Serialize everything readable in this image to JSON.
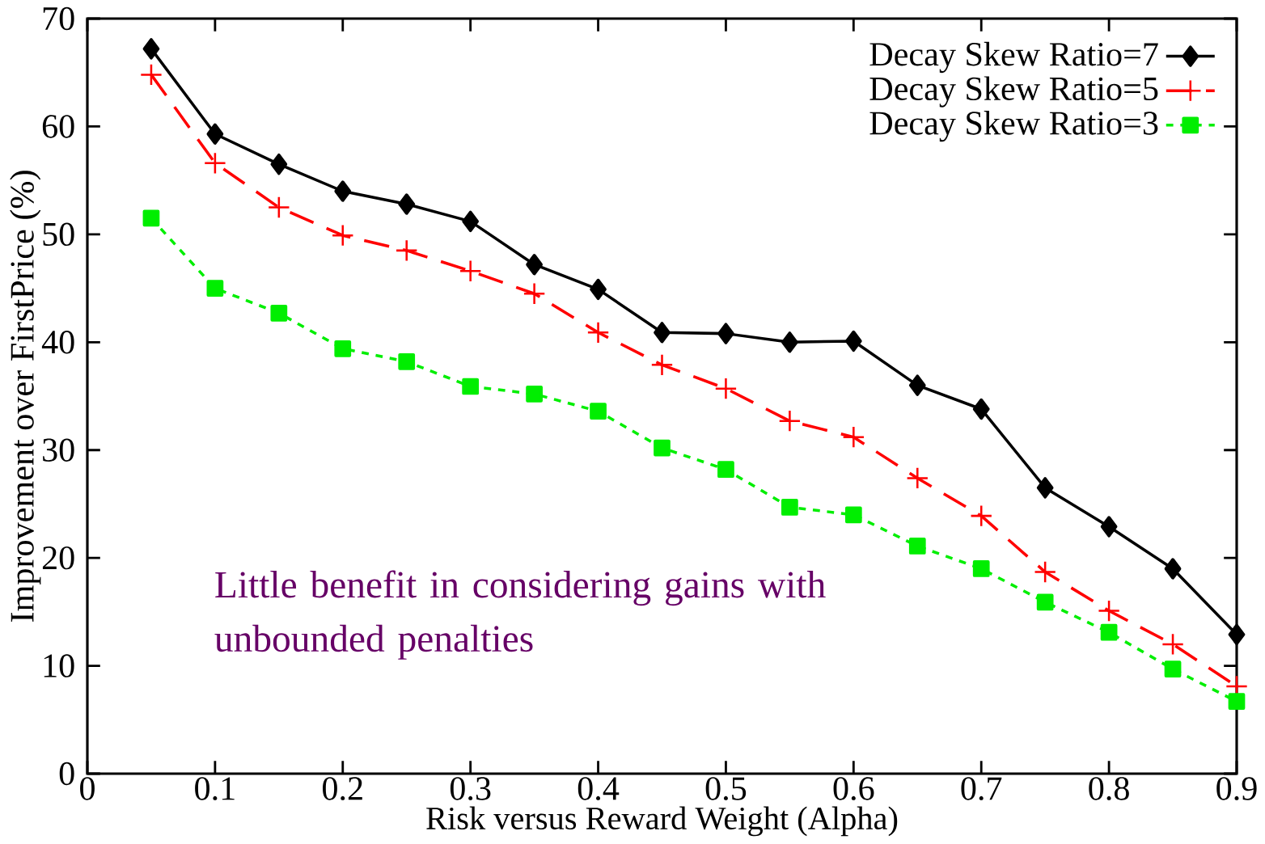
{
  "chart_data": {
    "type": "line",
    "xlabel": "Risk versus Reward Weight (Alpha)",
    "ylabel": "Improvement over FirstPrice (%)",
    "x": [
      0.05,
      0.1,
      0.15,
      0.2,
      0.25,
      0.3,
      0.35,
      0.4,
      0.45,
      0.5,
      0.55,
      0.6,
      0.65,
      0.7,
      0.75,
      0.8,
      0.85,
      0.9
    ],
    "series": [
      {
        "name": "Decay Skew Ratio=7",
        "color": "#000000",
        "marker": "diamond",
        "line_style": "solid",
        "values": [
          67.2,
          59.3,
          56.5,
          54.0,
          52.8,
          51.2,
          47.2,
          44.9,
          40.9,
          40.8,
          40.0,
          40.1,
          36.0,
          33.8,
          26.5,
          22.9,
          19.0,
          12.9
        ]
      },
      {
        "name": "Decay Skew Ratio=5",
        "color": "#ff0000",
        "marker": "cross",
        "line_style": "dashed",
        "values": [
          64.8,
          56.6,
          52.5,
          49.9,
          48.5,
          46.6,
          44.5,
          40.9,
          37.9,
          35.7,
          32.7,
          31.2,
          27.4,
          23.9,
          18.7,
          15.1,
          12.0,
          8.1
        ]
      },
      {
        "name": "Decay Skew Ratio=3",
        "color": "#00ee00",
        "marker": "square",
        "line_style": "dotted",
        "values": [
          51.5,
          45.0,
          42.7,
          39.4,
          38.2,
          35.9,
          35.2,
          33.6,
          30.2,
          28.2,
          24.7,
          24.0,
          21.1,
          19.0,
          15.9,
          13.1,
          9.7,
          6.7
        ]
      }
    ],
    "xlim": [
      0,
      0.9
    ],
    "ylim": [
      0,
      70
    ],
    "xticks": [
      0,
      0.1,
      0.2,
      0.3,
      0.4,
      0.5,
      0.6,
      0.7,
      0.8,
      0.9
    ],
    "yticks": [
      0,
      10,
      20,
      30,
      40,
      50,
      60,
      70
    ],
    "grid": false,
    "legend": "top right",
    "annotations": [
      "Little benefit in considering gains with unbounded penalties"
    ]
  }
}
